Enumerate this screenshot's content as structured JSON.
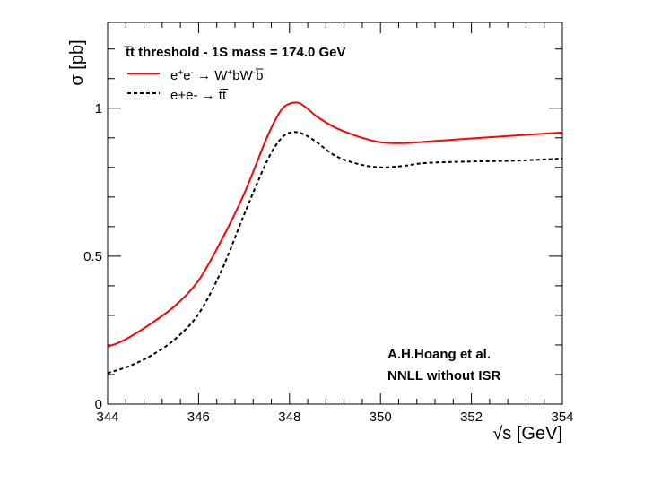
{
  "chart_data": {
    "type": "line",
    "title": "",
    "legend": {
      "title": "t̅t threshold - 1S mass = 174.0 GeV",
      "placement": "top-left",
      "entries": [
        {
          "series": "ww_bb",
          "label_html": "e<tspan baseline-shift='super' font-size='10'>+</tspan>e<tspan baseline-shift='super' font-size='10'>-</tspan> → W<tspan baseline-shift='super' font-size='10'>+</tspan>bW<tspan baseline-shift='super' font-size='10'>-</tspan>b̅",
          "label": "e+e- → W+bW-b̅"
        },
        {
          "series": "tt",
          "label": "e+e- → tt̅"
        }
      ]
    },
    "xlabel": "√s [GeV]",
    "ylabel": "σ [pb]",
    "xlim": [
      344,
      354
    ],
    "ylim": [
      0,
      1.29
    ],
    "xticks": [
      344,
      346,
      348,
      350,
      352,
      354
    ],
    "xtick_labels": [
      "344",
      "346",
      "348",
      "350",
      "352",
      "354"
    ],
    "yticks": [
      0,
      0.5,
      1
    ],
    "ytick_labels": [
      "0",
      "0.5",
      "1"
    ],
    "annotations": [
      "A.H.Hoang et al.",
      "NNLL without ISR"
    ],
    "series": [
      {
        "name": "ww_bb",
        "color": "#ff0000",
        "style": "solid",
        "x": [
          344.0,
          344.2,
          344.5,
          345.0,
          345.5,
          346.0,
          346.5,
          347.0,
          347.5,
          347.8,
          348.0,
          348.2,
          348.4,
          348.6,
          349.0,
          349.5,
          350.0,
          350.5,
          351.0,
          352.0,
          353.0,
          354.0
        ],
        "values": [
          0.195,
          0.205,
          0.228,
          0.277,
          0.335,
          0.418,
          0.553,
          0.71,
          0.9,
          0.99,
          1.015,
          1.018,
          0.998,
          0.972,
          0.935,
          0.905,
          0.885,
          0.882,
          0.887,
          0.898,
          0.908,
          0.918
        ]
      },
      {
        "name": "tt",
        "color": "#000000",
        "style": "dashed",
        "x": [
          344.0,
          344.5,
          345.0,
          345.5,
          346.0,
          346.5,
          347.0,
          347.5,
          347.8,
          348.0,
          348.2,
          348.4,
          348.6,
          349.0,
          349.5,
          350.0,
          350.5,
          351.0,
          352.0,
          353.0,
          354.0
        ],
        "values": [
          0.105,
          0.13,
          0.168,
          0.222,
          0.305,
          0.45,
          0.64,
          0.82,
          0.895,
          0.917,
          0.918,
          0.905,
          0.885,
          0.84,
          0.812,
          0.8,
          0.805,
          0.815,
          0.82,
          0.823,
          0.83
        ]
      }
    ]
  }
}
